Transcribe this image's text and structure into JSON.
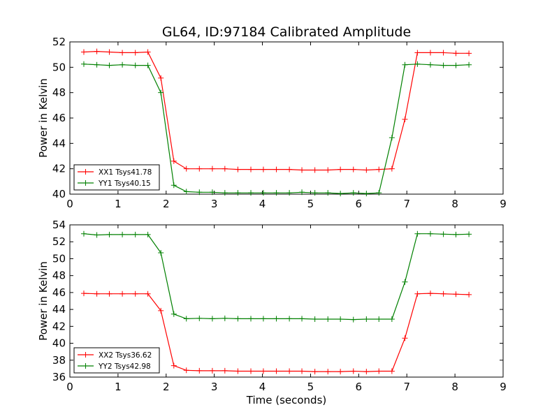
{
  "title": "GL64, ID:97184 Calibrated Amplitude",
  "chart_data": [
    {
      "type": "line",
      "title": "GL64, ID:97184 Calibrated Amplitude",
      "xlabel": "",
      "ylabel": "Power in Kelvin",
      "xlim": [
        0,
        9
      ],
      "ylim": [
        40,
        52
      ],
      "xticks": [
        "0",
        "1",
        "2",
        "3",
        "4",
        "5",
        "6",
        "7",
        "8",
        "9"
      ],
      "yticks": [
        "40",
        "42",
        "44",
        "46",
        "48",
        "50",
        "52"
      ],
      "grid": false,
      "legend_position": "lower-left",
      "x": [
        0.29,
        0.56,
        0.82,
        1.09,
        1.36,
        1.62,
        1.89,
        2.16,
        2.42,
        2.69,
        2.96,
        3.22,
        3.49,
        3.76,
        4.02,
        4.29,
        4.56,
        4.82,
        5.09,
        5.36,
        5.62,
        5.89,
        6.16,
        6.42,
        6.69,
        6.96,
        7.22,
        7.49,
        7.76,
        8.02,
        8.29
      ],
      "series": [
        {
          "name": "XX1 Tsys41.78",
          "color": "#ff0000",
          "values": [
            51.2,
            51.25,
            51.2,
            51.15,
            51.15,
            51.2,
            49.15,
            42.6,
            42.0,
            42.0,
            42.0,
            42.0,
            41.95,
            41.95,
            41.95,
            41.95,
            41.95,
            41.9,
            41.9,
            41.9,
            41.95,
            41.95,
            41.9,
            41.95,
            42.0,
            45.9,
            51.15,
            51.15,
            51.15,
            51.1,
            51.1
          ]
        },
        {
          "name": "YY1 Tsys40.15",
          "color": "#008000",
          "values": [
            50.25,
            50.2,
            50.15,
            50.2,
            50.15,
            50.15,
            48.0,
            40.7,
            40.2,
            40.15,
            40.15,
            40.1,
            40.1,
            40.1,
            40.1,
            40.1,
            40.1,
            40.15,
            40.1,
            40.1,
            40.05,
            40.1,
            40.05,
            40.1,
            44.45,
            50.2,
            50.25,
            50.2,
            50.15,
            50.15,
            50.2
          ]
        }
      ]
    },
    {
      "type": "line",
      "title": "",
      "xlabel": "Time (seconds)",
      "ylabel": "Power in Kelvin",
      "xlim": [
        0,
        9
      ],
      "ylim": [
        36,
        54
      ],
      "xticks": [
        "0",
        "1",
        "2",
        "3",
        "4",
        "5",
        "6",
        "7",
        "8",
        "9"
      ],
      "yticks": [
        "36",
        "38",
        "40",
        "42",
        "44",
        "46",
        "48",
        "50",
        "52",
        "54"
      ],
      "grid": false,
      "legend_position": "lower-left",
      "x": [
        0.29,
        0.56,
        0.82,
        1.09,
        1.36,
        1.62,
        1.89,
        2.16,
        2.42,
        2.69,
        2.96,
        3.22,
        3.49,
        3.76,
        4.02,
        4.29,
        4.56,
        4.82,
        5.09,
        5.36,
        5.62,
        5.89,
        6.16,
        6.42,
        6.69,
        6.96,
        7.22,
        7.49,
        7.76,
        8.02,
        8.29
      ],
      "series": [
        {
          "name": "XX2 Tsys36.62",
          "color": "#ff0000",
          "values": [
            45.9,
            45.85,
            45.85,
            45.85,
            45.85,
            45.85,
            43.85,
            37.35,
            36.8,
            36.75,
            36.75,
            36.75,
            36.7,
            36.7,
            36.7,
            36.7,
            36.7,
            36.7,
            36.65,
            36.65,
            36.65,
            36.7,
            36.65,
            36.7,
            36.7,
            40.6,
            45.85,
            45.9,
            45.85,
            45.8,
            45.75
          ]
        },
        {
          "name": "YY2 Tsys42.98",
          "color": "#008000",
          "values": [
            52.95,
            52.8,
            52.85,
            52.85,
            52.85,
            52.85,
            50.7,
            43.45,
            42.9,
            42.95,
            42.9,
            42.95,
            42.9,
            42.9,
            42.9,
            42.9,
            42.9,
            42.9,
            42.85,
            42.85,
            42.85,
            42.8,
            42.85,
            42.85,
            42.85,
            47.25,
            52.95,
            52.95,
            52.9,
            52.85,
            52.9
          ]
        }
      ]
    }
  ]
}
